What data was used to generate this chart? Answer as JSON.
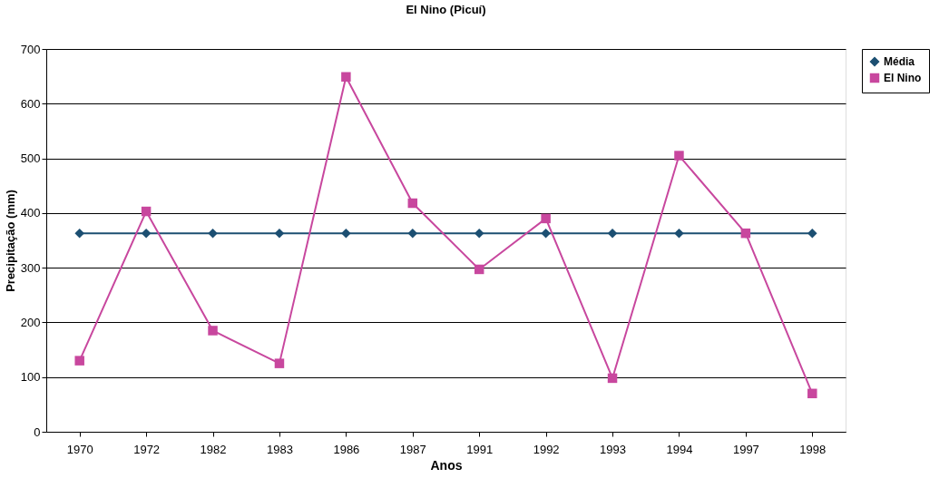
{
  "chart_data": {
    "type": "line",
    "title": "El Nino (Picuí)",
    "xlabel": "Anos",
    "ylabel": "Precipitação (mm)",
    "categories": [
      "1970",
      "1972",
      "1982",
      "1983",
      "1986",
      "1987",
      "1991",
      "1992",
      "1993",
      "1994",
      "1997",
      "1998"
    ],
    "series": [
      {
        "name": "Média",
        "color": "#1c4f72",
        "marker": "diamond",
        "values": [
          363,
          363,
          363,
          363,
          363,
          363,
          363,
          363,
          363,
          363,
          363,
          363
        ]
      },
      {
        "name": "El Nino",
        "color": "#c8479e",
        "marker": "square",
        "values": [
          130,
          403,
          185,
          125,
          649,
          418,
          297,
          390,
          98,
          505,
          363,
          70
        ]
      }
    ],
    "ylim": [
      0,
      700
    ],
    "yticks": [
      0,
      100,
      200,
      300,
      400,
      500,
      600,
      700
    ],
    "grid": "y",
    "legend": "right"
  }
}
